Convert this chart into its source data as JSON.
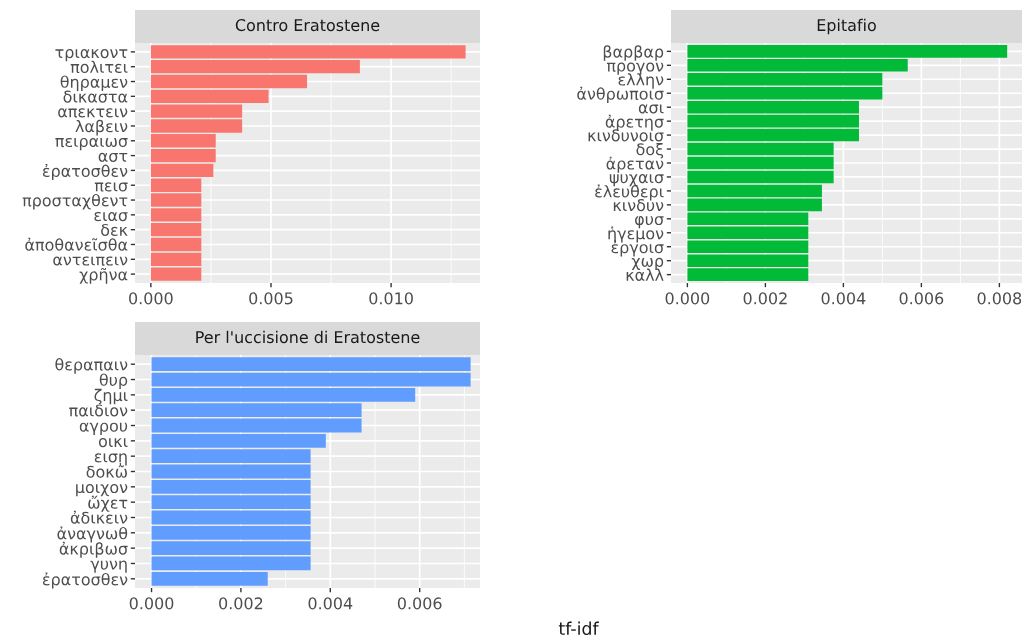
{
  "chart_data": [
    {
      "type": "bar",
      "orientation": "horizontal",
      "title": "Contro Eratostene",
      "grid": true,
      "categories": [
        "τριακοντ",
        "πολιτει",
        "θηραμεν",
        "δικαστα",
        "απεκτειν",
        "λαβειν",
        "πειραιωσ",
        "αστ",
        "ἐρατοσθεν",
        "πεισ",
        "προσταχθεντ",
        "ειασ",
        "δεκ",
        "ἀποθανεῖσθα",
        "αντειπειν",
        "χρῆνα"
      ],
      "values": [
        0.0131,
        0.0087,
        0.0065,
        0.0049,
        0.0038,
        0.0038,
        0.0027,
        0.0027,
        0.0026,
        0.0021,
        0.0021,
        0.0021,
        0.0021,
        0.0021,
        0.0021,
        0.0021
      ],
      "color": "#f8766d",
      "xlim": [
        -0.00066,
        0.0137
      ],
      "xticks": [
        {
          "value": 0,
          "label": "0.000"
        },
        {
          "value": 0.0025,
          "label": null
        },
        {
          "value": 0.005,
          "label": "0.005"
        },
        {
          "value": 0.0075,
          "label": null
        },
        {
          "value": 0.01,
          "label": "0.010"
        },
        {
          "value": 0.0125,
          "label": null
        }
      ]
    },
    {
      "type": "bar",
      "orientation": "horizontal",
      "title": "Epitafio",
      "grid": true,
      "categories": [
        "βαρβαρ",
        "προγον",
        "ελλην",
        "ἀνθρωποισ",
        "ασι",
        "ἀρετησ",
        "κινδυνοισ",
        "δοξ",
        "ἀρεταν",
        "ψυχαισ",
        "ἐλευθερι",
        "κινδυν",
        "φυσ",
        "ἡγεμον",
        "ἐργοισ",
        "χωρ",
        "καλλ"
      ],
      "values": [
        0.0082,
        0.00565,
        0.005,
        0.005,
        0.0044,
        0.0044,
        0.0044,
        0.00375,
        0.00375,
        0.00375,
        0.00345,
        0.00345,
        0.0031,
        0.0031,
        0.0031,
        0.0031,
        0.0031
      ],
      "color": "#00ba38",
      "xlim": [
        -0.00042,
        0.00858
      ],
      "xticks": [
        {
          "value": 0,
          "label": "0.000"
        },
        {
          "value": 0.001,
          "label": null
        },
        {
          "value": 0.002,
          "label": "0.002"
        },
        {
          "value": 0.003,
          "label": null
        },
        {
          "value": 0.004,
          "label": "0.004"
        },
        {
          "value": 0.005,
          "label": null
        },
        {
          "value": 0.006,
          "label": "0.006"
        },
        {
          "value": 0.007,
          "label": null
        },
        {
          "value": 0.008,
          "label": "0.008"
        }
      ]
    },
    {
      "type": "bar",
      "orientation": "horizontal",
      "title": "Per l'uccisione di Eratostene",
      "grid": true,
      "xlabel": "tf-idf",
      "categories": [
        "θεραπαιν",
        "θυρ",
        "ζημι",
        "παιδιον",
        "αγρου",
        "οικι",
        "εισῃ",
        "δοκῶ",
        "μοιχον",
        "ὤχετ",
        "ἀδικειν",
        "ἀναγνωθ",
        "ἀκριβωσ",
        "γυνη",
        "ἐρατοσθεν"
      ],
      "values": [
        0.00714,
        0.00714,
        0.0059,
        0.0047,
        0.0047,
        0.0039,
        0.00356,
        0.00356,
        0.00356,
        0.00356,
        0.00356,
        0.00356,
        0.00356,
        0.00356,
        0.0026
      ],
      "color": "#619cff",
      "xlim": [
        -0.00037,
        0.00735
      ],
      "xticks": [
        {
          "value": 0,
          "label": "0.000"
        },
        {
          "value": 0.001,
          "label": null
        },
        {
          "value": 0.002,
          "label": "0.002"
        },
        {
          "value": 0.003,
          "label": null
        },
        {
          "value": 0.004,
          "label": "0.004"
        },
        {
          "value": 0.005,
          "label": null
        },
        {
          "value": 0.006,
          "label": "0.006"
        },
        {
          "value": 0.007,
          "label": null
        }
      ]
    }
  ]
}
